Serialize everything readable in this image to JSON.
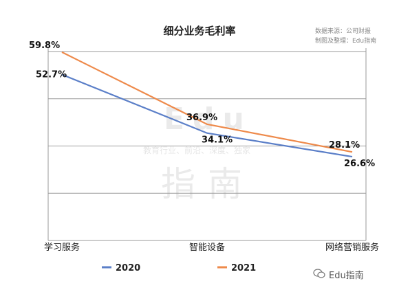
{
  "chart_data": {
    "type": "line",
    "title": "细分业务毛利率",
    "categories": [
      "学习服务",
      "智能设备",
      "网络营销服务"
    ],
    "series": [
      {
        "name": "2020",
        "color": "#5b7fc8",
        "values": [
          52.7,
          34.1,
          26.6
        ],
        "labels": [
          "52.7%",
          "34.1%",
          "26.6%"
        ]
      },
      {
        "name": "2021",
        "color": "#ee8a4b",
        "values": [
          59.8,
          36.9,
          28.1
        ],
        "labels": [
          "59.8%",
          "36.9%",
          "28.1%"
        ]
      }
    ],
    "ylim": [
      0,
      60
    ],
    "grid": true,
    "legend": "bottom"
  },
  "source": {
    "line1": "数据来源：公司财报",
    "line2": "制图及整理：Edu指南"
  },
  "watermark": {
    "latin": "Edu",
    "tagline": "教育行业、前沿、深度、独家",
    "cn": "指南"
  },
  "footer": {
    "brand": "Edu指南",
    "icon": "wechat-icon"
  }
}
